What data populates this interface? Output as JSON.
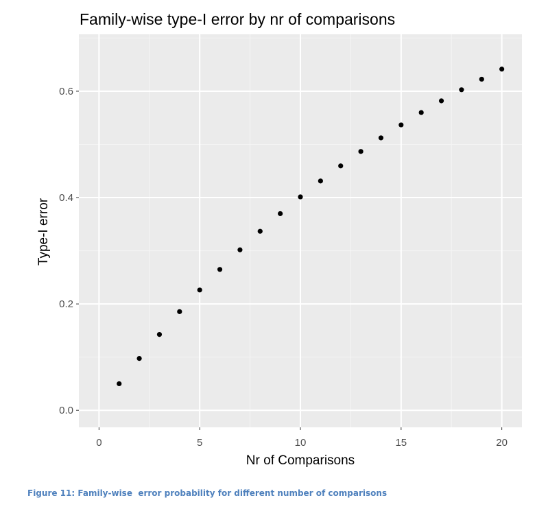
{
  "chart_data": {
    "type": "scatter",
    "title": "Family-wise type-I error by nr of comparisons",
    "xlabel": "Nr of Comparisons",
    "ylabel": "Type-I error",
    "xlim": [
      -1,
      21
    ],
    "ylim": [
      -0.032,
      0.707
    ],
    "x_ticks": [
      0,
      5,
      10,
      15,
      20
    ],
    "x_tick_labels": [
      "0",
      "5",
      "10",
      "15",
      "20"
    ],
    "y_ticks": [
      0.0,
      0.2,
      0.4,
      0.6
    ],
    "y_tick_labels": [
      "0.0",
      "0.2",
      "0.4",
      "0.6"
    ],
    "grid": true,
    "x": [
      1,
      2,
      3,
      4,
      5,
      6,
      7,
      8,
      9,
      10,
      11,
      12,
      13,
      14,
      15,
      16,
      17,
      18,
      19,
      20
    ],
    "y": [
      0.05,
      0.0975,
      0.1426,
      0.1855,
      0.2262,
      0.2649,
      0.3017,
      0.3366,
      0.3698,
      0.4013,
      0.4312,
      0.4596,
      0.4867,
      0.5123,
      0.5367,
      0.5599,
      0.5819,
      0.6028,
      0.6226,
      0.6415
    ],
    "colors": {
      "panel": "#ebebeb",
      "grid_major": "#ffffff",
      "grid_minor": "#f5f5f5",
      "point": "#000000",
      "tick": "#4d4d4d"
    }
  },
  "caption": "Figure 11: Family-wise  error probability for different number of comparisons"
}
